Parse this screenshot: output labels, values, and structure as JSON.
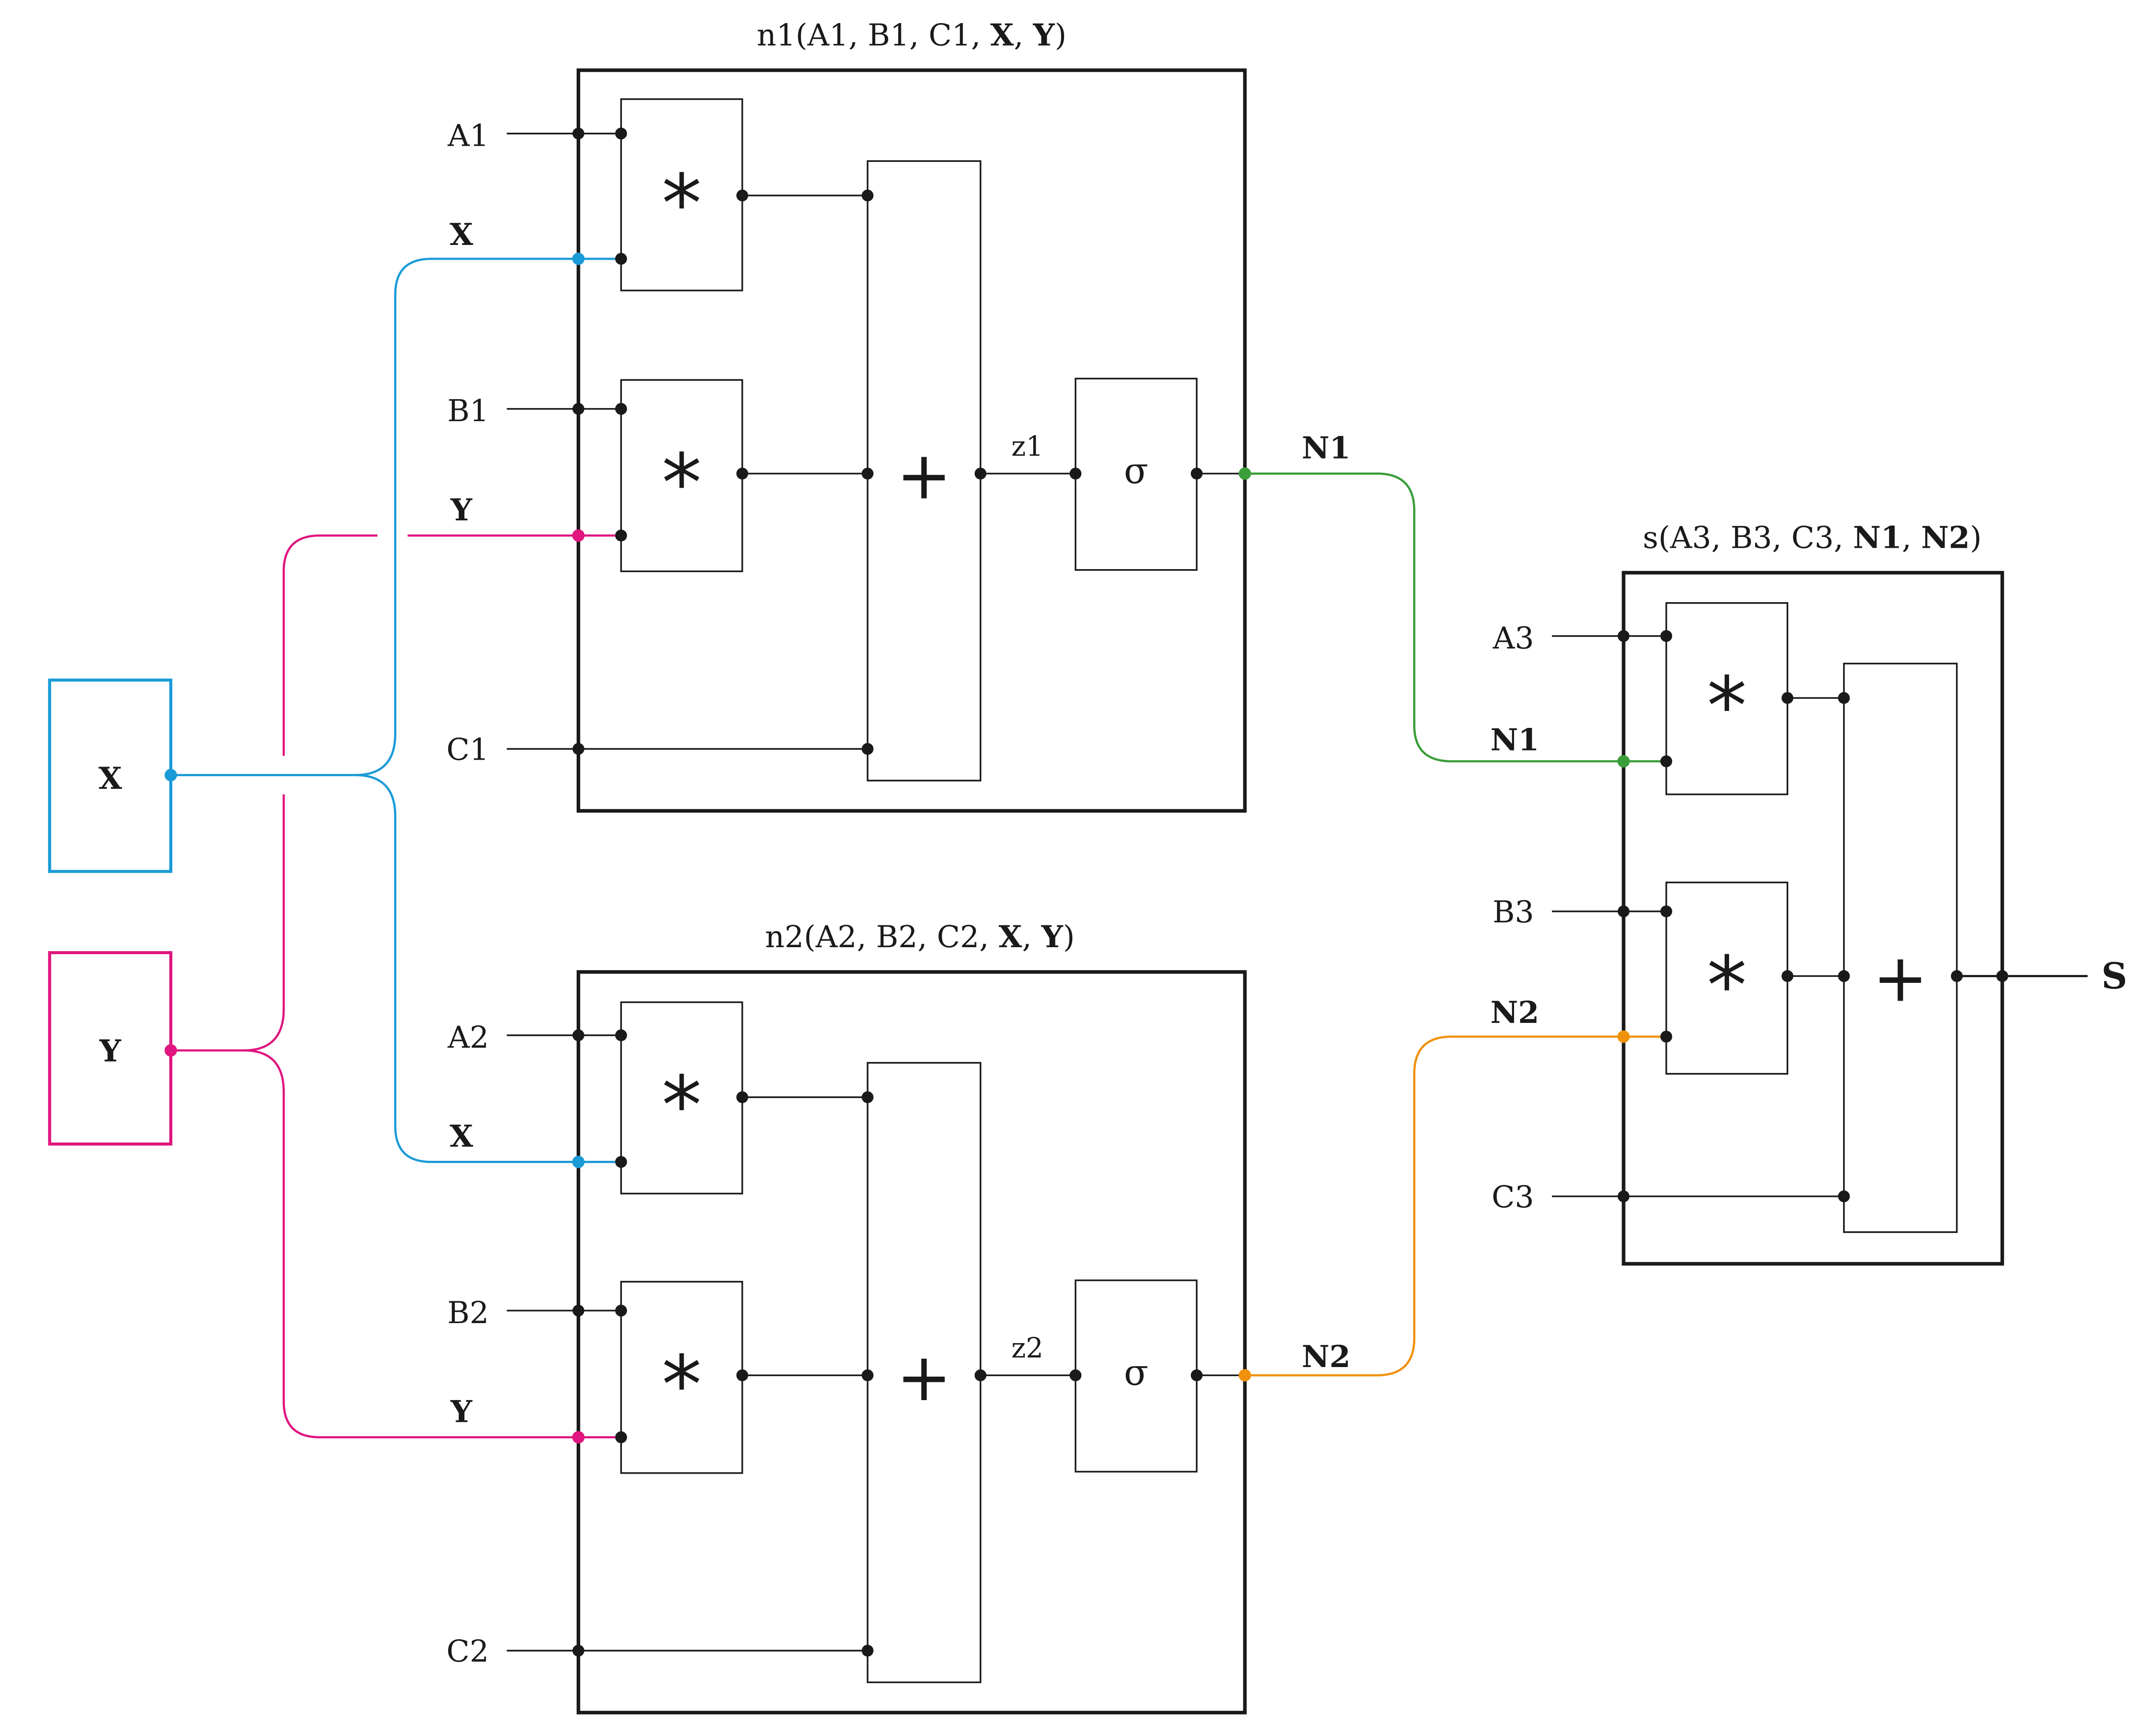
{
  "colors": {
    "ink": "#1a1a1a",
    "x": "#1a9bd7",
    "y": "#e0157f",
    "n1": "#3a9e3a",
    "n2": "#f0920c"
  },
  "inputs": {
    "x": "X",
    "y": "Y"
  },
  "neuron1": {
    "title_prefix": "n1(A1, B1, C1, ",
    "title_x": "X",
    "title_sep": ", ",
    "title_y": "Y",
    "title_suffix": ")",
    "a": "A1",
    "b": "B1",
    "c": "C1",
    "x_label": "X",
    "y_label": "Y",
    "mult_top": "*",
    "mult_bottom": "*",
    "sum": "+",
    "z": "z1",
    "activation": "σ",
    "out_label": "N1"
  },
  "neuron2": {
    "title_prefix": "n2(A2, B2, C2, ",
    "title_x": "X",
    "title_sep": ", ",
    "title_y": "Y",
    "title_suffix": ")",
    "a": "A2",
    "b": "B2",
    "c": "C2",
    "x_label": "X",
    "y_label": "Y",
    "mult_top": "*",
    "mult_bottom": "*",
    "sum": "+",
    "z": "z2",
    "activation": "σ",
    "out_label": "N2"
  },
  "sum_block": {
    "title_prefix": "s(A3, B3, C3, ",
    "title_n1": "N1",
    "title_sep": ", ",
    "title_n2": "N2",
    "title_suffix": ")",
    "a": "A3",
    "b": "B3",
    "c": "C3",
    "n1_label": "N1",
    "n2_label": "N2",
    "mult_top": "*",
    "mult_bottom": "*",
    "sum": "+",
    "output": "S"
  }
}
